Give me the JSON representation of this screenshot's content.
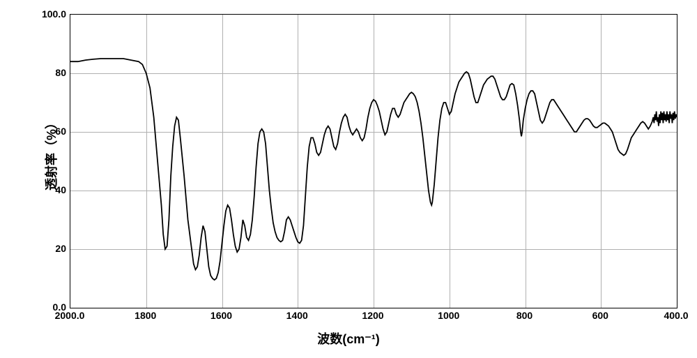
{
  "chart": {
    "type": "line",
    "xlabel": "波数(cm⁻¹)",
    "ylabel": "透射率（%）",
    "label_fontsize": 18,
    "tick_fontsize": 14,
    "xlim": [
      2000,
      400
    ],
    "ylim": [
      0,
      100
    ],
    "xticks": [
      2000,
      1800,
      1600,
      1400,
      1200,
      1000,
      800,
      600,
      400
    ],
    "xtick_labels": [
      "2000.0",
      "1800",
      "1600",
      "1400",
      "1200",
      "1000",
      "800",
      "600",
      "400.0"
    ],
    "yticks": [
      0,
      20,
      40,
      60,
      80,
      100
    ],
    "ytick_labels": [
      "0.0",
      "20",
      "40",
      "60",
      "80",
      "100.0"
    ],
    "background_color": "#ffffff",
    "grid_color": "#b0b0b0",
    "line_color": "#000000",
    "line_width": 1.8,
    "spectrum_points": [
      [
        2000,
        84
      ],
      [
        1980,
        84
      ],
      [
        1960,
        84.5
      ],
      [
        1940,
        84.8
      ],
      [
        1920,
        85
      ],
      [
        1900,
        85
      ],
      [
        1880,
        85
      ],
      [
        1860,
        85
      ],
      [
        1840,
        84.5
      ],
      [
        1820,
        84
      ],
      [
        1810,
        83
      ],
      [
        1800,
        80
      ],
      [
        1790,
        75
      ],
      [
        1780,
        65
      ],
      [
        1770,
        50
      ],
      [
        1760,
        35
      ],
      [
        1755,
        25
      ],
      [
        1750,
        20
      ],
      [
        1745,
        21
      ],
      [
        1740,
        30
      ],
      [
        1735,
        45
      ],
      [
        1730,
        55
      ],
      [
        1725,
        62
      ],
      [
        1720,
        65
      ],
      [
        1715,
        64
      ],
      [
        1710,
        58
      ],
      [
        1700,
        45
      ],
      [
        1690,
        30
      ],
      [
        1680,
        20
      ],
      [
        1675,
        15
      ],
      [
        1670,
        13
      ],
      [
        1665,
        14
      ],
      [
        1660,
        18
      ],
      [
        1655,
        24
      ],
      [
        1650,
        28
      ],
      [
        1645,
        26
      ],
      [
        1640,
        20
      ],
      [
        1635,
        14
      ],
      [
        1630,
        11
      ],
      [
        1625,
        10
      ],
      [
        1620,
        9.5
      ],
      [
        1615,
        10
      ],
      [
        1610,
        12
      ],
      [
        1605,
        16
      ],
      [
        1600,
        22
      ],
      [
        1595,
        28
      ],
      [
        1590,
        33
      ],
      [
        1585,
        35
      ],
      [
        1580,
        34
      ],
      [
        1575,
        30
      ],
      [
        1570,
        25
      ],
      [
        1565,
        21
      ],
      [
        1560,
        19
      ],
      [
        1555,
        20
      ],
      [
        1550,
        24
      ],
      [
        1545,
        30
      ],
      [
        1540,
        28
      ],
      [
        1535,
        24
      ],
      [
        1530,
        23
      ],
      [
        1525,
        25
      ],
      [
        1520,
        30
      ],
      [
        1515,
        38
      ],
      [
        1510,
        48
      ],
      [
        1505,
        56
      ],
      [
        1500,
        60
      ],
      [
        1495,
        61
      ],
      [
        1490,
        60
      ],
      [
        1485,
        56
      ],
      [
        1480,
        48
      ],
      [
        1475,
        40
      ],
      [
        1470,
        34
      ],
      [
        1465,
        29
      ],
      [
        1460,
        26
      ],
      [
        1455,
        24
      ],
      [
        1450,
        23
      ],
      [
        1445,
        22.5
      ],
      [
        1440,
        23
      ],
      [
        1435,
        26
      ],
      [
        1430,
        30
      ],
      [
        1425,
        31
      ],
      [
        1420,
        30
      ],
      [
        1415,
        28
      ],
      [
        1410,
        26
      ],
      [
        1405,
        24
      ],
      [
        1400,
        22.5
      ],
      [
        1395,
        22
      ],
      [
        1390,
        23
      ],
      [
        1385,
        28
      ],
      [
        1380,
        38
      ],
      [
        1375,
        48
      ],
      [
        1370,
        55
      ],
      [
        1365,
        58
      ],
      [
        1360,
        58
      ],
      [
        1355,
        56
      ],
      [
        1350,
        53
      ],
      [
        1345,
        52
      ],
      [
        1340,
        53
      ],
      [
        1335,
        56
      ],
      [
        1330,
        59
      ],
      [
        1325,
        61
      ],
      [
        1320,
        62
      ],
      [
        1315,
        61
      ],
      [
        1310,
        58
      ],
      [
        1305,
        55
      ],
      [
        1300,
        54
      ],
      [
        1295,
        56
      ],
      [
        1290,
        60
      ],
      [
        1285,
        63
      ],
      [
        1280,
        65
      ],
      [
        1275,
        66
      ],
      [
        1270,
        65
      ],
      [
        1265,
        62
      ],
      [
        1260,
        60
      ],
      [
        1255,
        59
      ],
      [
        1250,
        60
      ],
      [
        1245,
        61
      ],
      [
        1240,
        60
      ],
      [
        1235,
        58
      ],
      [
        1230,
        57
      ],
      [
        1225,
        58
      ],
      [
        1220,
        61
      ],
      [
        1215,
        65
      ],
      [
        1210,
        68
      ],
      [
        1205,
        70
      ],
      [
        1200,
        71
      ],
      [
        1195,
        70.5
      ],
      [
        1190,
        69
      ],
      [
        1185,
        67
      ],
      [
        1180,
        64
      ],
      [
        1175,
        61
      ],
      [
        1170,
        59
      ],
      [
        1165,
        60
      ],
      [
        1160,
        63
      ],
      [
        1155,
        66
      ],
      [
        1150,
        68
      ],
      [
        1145,
        68
      ],
      [
        1140,
        66
      ],
      [
        1135,
        65
      ],
      [
        1130,
        66
      ],
      [
        1125,
        68
      ],
      [
        1120,
        70
      ],
      [
        1115,
        71
      ],
      [
        1110,
        72
      ],
      [
        1105,
        73
      ],
      [
        1100,
        73.5
      ],
      [
        1095,
        73
      ],
      [
        1090,
        72
      ],
      [
        1085,
        70
      ],
      [
        1080,
        67
      ],
      [
        1075,
        63
      ],
      [
        1070,
        58
      ],
      [
        1065,
        52
      ],
      [
        1060,
        46
      ],
      [
        1055,
        40
      ],
      [
        1050,
        36
      ],
      [
        1047,
        35
      ],
      [
        1045,
        36
      ],
      [
        1040,
        42
      ],
      [
        1035,
        50
      ],
      [
        1030,
        58
      ],
      [
        1025,
        64
      ],
      [
        1020,
        68
      ],
      [
        1015,
        70
      ],
      [
        1010,
        70
      ],
      [
        1005,
        68
      ],
      [
        1000,
        66
      ],
      [
        995,
        67
      ],
      [
        990,
        70
      ],
      [
        985,
        73
      ],
      [
        980,
        75
      ],
      [
        975,
        77
      ],
      [
        970,
        78
      ],
      [
        965,
        79
      ],
      [
        960,
        80
      ],
      [
        955,
        80.5
      ],
      [
        950,
        80
      ],
      [
        945,
        78
      ],
      [
        940,
        75
      ],
      [
        935,
        72
      ],
      [
        930,
        70
      ],
      [
        925,
        70
      ],
      [
        920,
        72
      ],
      [
        915,
        74
      ],
      [
        910,
        76
      ],
      [
        905,
        77
      ],
      [
        900,
        78
      ],
      [
        895,
        78.5
      ],
      [
        890,
        79
      ],
      [
        885,
        79
      ],
      [
        880,
        78
      ],
      [
        875,
        76
      ],
      [
        870,
        74
      ],
      [
        865,
        72
      ],
      [
        860,
        71
      ],
      [
        855,
        71
      ],
      [
        850,
        72
      ],
      [
        845,
        74
      ],
      [
        840,
        76
      ],
      [
        835,
        76.5
      ],
      [
        830,
        76
      ],
      [
        825,
        73
      ],
      [
        820,
        69
      ],
      [
        815,
        64
      ],
      [
        812,
        60
      ],
      [
        810,
        58.5
      ],
      [
        808,
        60
      ],
      [
        805,
        64
      ],
      [
        800,
        68
      ],
      [
        795,
        71
      ],
      [
        790,
        73
      ],
      [
        785,
        74
      ],
      [
        780,
        74
      ],
      [
        775,
        73
      ],
      [
        770,
        70
      ],
      [
        765,
        67
      ],
      [
        760,
        64
      ],
      [
        755,
        63
      ],
      [
        750,
        64
      ],
      [
        745,
        66
      ],
      [
        740,
        68
      ],
      [
        735,
        70
      ],
      [
        730,
        71
      ],
      [
        725,
        71
      ],
      [
        720,
        70
      ],
      [
        715,
        69
      ],
      [
        710,
        68
      ],
      [
        705,
        67
      ],
      [
        700,
        66
      ],
      [
        695,
        65
      ],
      [
        690,
        64
      ],
      [
        685,
        63
      ],
      [
        680,
        62
      ],
      [
        675,
        61
      ],
      [
        670,
        60
      ],
      [
        665,
        60
      ],
      [
        660,
        61
      ],
      [
        655,
        62
      ],
      [
        650,
        63
      ],
      [
        645,
        64
      ],
      [
        640,
        64.5
      ],
      [
        635,
        64.5
      ],
      [
        630,
        64
      ],
      [
        625,
        63
      ],
      [
        620,
        62
      ],
      [
        615,
        61.5
      ],
      [
        610,
        61.5
      ],
      [
        605,
        62
      ],
      [
        600,
        62.5
      ],
      [
        595,
        63
      ],
      [
        590,
        63
      ],
      [
        585,
        62.5
      ],
      [
        580,
        62
      ],
      [
        575,
        61
      ],
      [
        570,
        60
      ],
      [
        565,
        58
      ],
      [
        560,
        56
      ],
      [
        555,
        54
      ],
      [
        550,
        53
      ],
      [
        545,
        52.5
      ],
      [
        540,
        52
      ],
      [
        535,
        52.5
      ],
      [
        530,
        54
      ],
      [
        525,
        56
      ],
      [
        520,
        58
      ],
      [
        515,
        59
      ],
      [
        510,
        60
      ],
      [
        505,
        61
      ],
      [
        500,
        62
      ],
      [
        495,
        63
      ],
      [
        490,
        63.5
      ],
      [
        485,
        63
      ],
      [
        480,
        62
      ],
      [
        475,
        61
      ],
      [
        470,
        62
      ],
      [
        465,
        63.5
      ],
      [
        462,
        65
      ],
      [
        460,
        63
      ],
      [
        458,
        66
      ],
      [
        456,
        64
      ],
      [
        454,
        67
      ],
      [
        452,
        63.5
      ],
      [
        450,
        65
      ],
      [
        448,
        62
      ],
      [
        446,
        66
      ],
      [
        444,
        63
      ],
      [
        442,
        67
      ],
      [
        440,
        64
      ],
      [
        438,
        66.5
      ],
      [
        436,
        63
      ],
      [
        434,
        67
      ],
      [
        432,
        64
      ],
      [
        430,
        66
      ],
      [
        428,
        63.5
      ],
      [
        426,
        67
      ],
      [
        424,
        64
      ],
      [
        422,
        66
      ],
      [
        420,
        63
      ],
      [
        418,
        67
      ],
      [
        416,
        64.5
      ],
      [
        414,
        66
      ],
      [
        412,
        63
      ],
      [
        410,
        66.5
      ],
      [
        408,
        64
      ],
      [
        406,
        67
      ],
      [
        404,
        64.5
      ],
      [
        402,
        66
      ],
      [
        400,
        65
      ]
    ]
  }
}
